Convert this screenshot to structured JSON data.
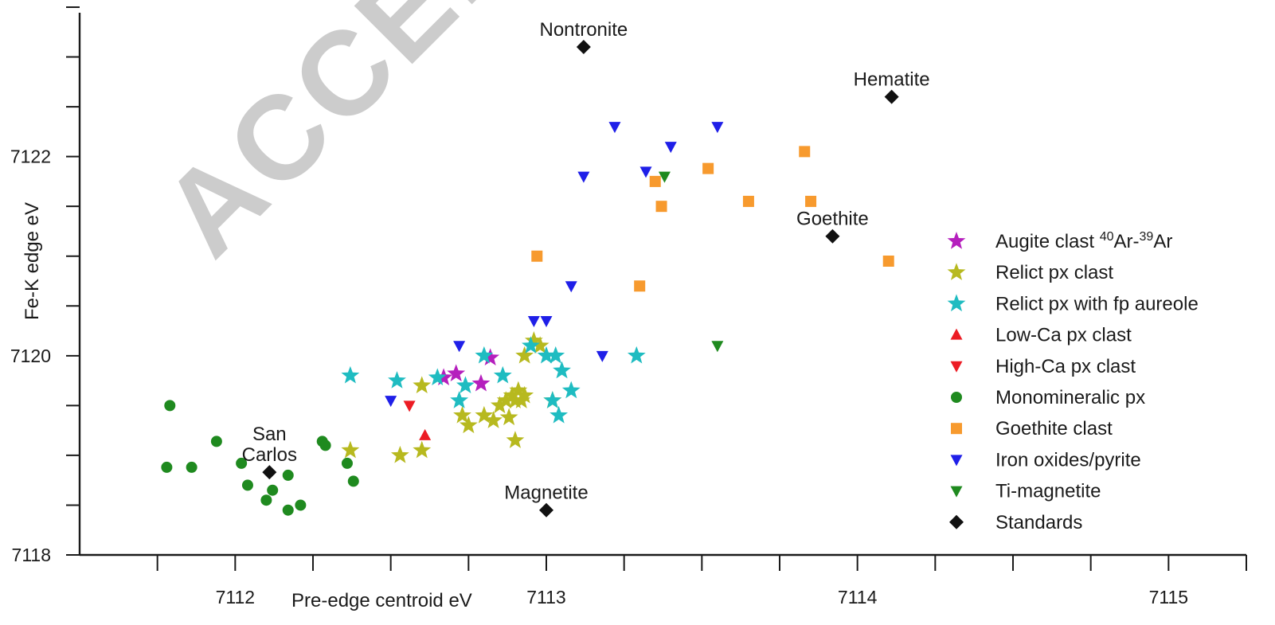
{
  "watermark": "ACCEP",
  "chart_data": {
    "type": "scatter",
    "xlabel": "Pre-edge centroid eV",
    "ylabel": "Fe-K edge eV",
    "xlim": [
      7111.5,
      7115.25
    ],
    "ylim": [
      7118,
      7123.5
    ],
    "x_ticks": [
      7112,
      7113,
      7114,
      7115
    ],
    "y_ticks": [
      7118,
      7120,
      7122
    ],
    "x_minor_step": 0.25,
    "y_minor_step": 0.5,
    "grid": false,
    "legend_position": "right",
    "series": [
      {
        "name": "Augite clast 40Ar-39Ar",
        "legend_parts": [
          {
            "text": "Augite clast ",
            "sup": false
          },
          {
            "text": "40",
            "sup": true
          },
          {
            "text": "Ar-",
            "sup": false
          },
          {
            "text": "39",
            "sup": true
          },
          {
            "text": "Ar",
            "sup": false
          }
        ],
        "marker": "star",
        "color": "#b51fbd",
        "points": [
          [
            7112.67,
            7119.78
          ],
          [
            7112.71,
            7119.82
          ],
          [
            7112.79,
            7119.72
          ],
          [
            7112.82,
            7119.98
          ]
        ]
      },
      {
        "name": "Relict px clast",
        "marker": "star",
        "color": "#b7b91f",
        "points": [
          [
            7112.37,
            7119.05
          ],
          [
            7112.53,
            7119.0
          ],
          [
            7112.6,
            7119.05
          ],
          [
            7112.6,
            7119.7
          ],
          [
            7112.73,
            7119.4
          ],
          [
            7112.75,
            7119.3
          ],
          [
            7112.8,
            7119.4
          ],
          [
            7112.83,
            7119.35
          ],
          [
            7112.85,
            7119.5
          ],
          [
            7112.87,
            7119.55
          ],
          [
            7112.88,
            7119.38
          ],
          [
            7112.89,
            7119.6
          ],
          [
            7112.9,
            7119.55
          ],
          [
            7112.91,
            7119.65
          ],
          [
            7112.92,
            7119.55
          ],
          [
            7112.93,
            7119.6
          ],
          [
            7112.9,
            7119.15
          ],
          [
            7112.93,
            7120.0
          ],
          [
            7112.96,
            7120.15
          ],
          [
            7112.98,
            7120.1
          ],
          [
            7113.02,
            7119.55
          ]
        ]
      },
      {
        "name": "Relict px with fp aureole",
        "marker": "star",
        "color": "#1fbcc1",
        "points": [
          [
            7112.37,
            7119.8
          ],
          [
            7112.52,
            7119.75
          ],
          [
            7112.65,
            7119.78
          ],
          [
            7112.72,
            7119.55
          ],
          [
            7112.74,
            7119.7
          ],
          [
            7112.8,
            7120.0
          ],
          [
            7112.86,
            7119.8
          ],
          [
            7112.95,
            7120.1
          ],
          [
            7113.0,
            7120.0
          ],
          [
            7113.03,
            7120.0
          ],
          [
            7113.05,
            7119.85
          ],
          [
            7113.02,
            7119.55
          ],
          [
            7113.04,
            7119.4
          ],
          [
            7113.08,
            7119.65
          ],
          [
            7113.29,
            7120.0
          ]
        ]
      },
      {
        "name": "Low-Ca px clast",
        "marker": "triangle-up",
        "color": "#ec1c24",
        "points": [
          [
            7112.61,
            7119.2
          ]
        ]
      },
      {
        "name": "High-Ca px clast",
        "marker": "triangle-down",
        "color": "#ec1c24",
        "points": [
          [
            7112.56,
            7119.5
          ]
        ]
      },
      {
        "name": "Monomineralic px",
        "marker": "circle",
        "color": "#1f8a1f",
        "points": [
          [
            7111.79,
            7119.5
          ],
          [
            7111.78,
            7118.88
          ],
          [
            7111.86,
            7118.88
          ],
          [
            7111.94,
            7119.14
          ],
          [
            7112.02,
            7118.92
          ],
          [
            7112.04,
            7118.7
          ],
          [
            7112.1,
            7118.55
          ],
          [
            7112.12,
            7118.65
          ],
          [
            7112.17,
            7118.8
          ],
          [
            7112.17,
            7118.45
          ],
          [
            7112.21,
            7118.5
          ],
          [
            7112.28,
            7119.14
          ],
          [
            7112.29,
            7119.1
          ],
          [
            7112.36,
            7118.92
          ],
          [
            7112.38,
            7118.74
          ]
        ]
      },
      {
        "name": "Goethite clast",
        "marker": "square",
        "color": "#f79a2e",
        "points": [
          [
            7112.97,
            7121.0
          ],
          [
            7113.3,
            7120.7
          ],
          [
            7113.35,
            7121.75
          ],
          [
            7113.37,
            7121.5
          ],
          [
            7113.52,
            7121.88
          ],
          [
            7113.65,
            7121.55
          ],
          [
            7113.83,
            7122.05
          ],
          [
            7113.85,
            7121.55
          ],
          [
            7114.1,
            7120.95
          ]
        ]
      },
      {
        "name": "Iron oxides/pyrite",
        "marker": "triangle-down",
        "color": "#1f1fe8",
        "points": [
          [
            7112.5,
            7119.55
          ],
          [
            7112.72,
            7120.1
          ],
          [
            7112.96,
            7120.35
          ],
          [
            7113.0,
            7120.35
          ],
          [
            7113.08,
            7120.7
          ],
          [
            7113.12,
            7121.8
          ],
          [
            7113.18,
            7120.0
          ],
          [
            7113.22,
            7122.3
          ],
          [
            7113.32,
            7121.85
          ],
          [
            7113.4,
            7122.1
          ],
          [
            7113.55,
            7122.3
          ]
        ]
      },
      {
        "name": "Ti-magnetite",
        "marker": "triangle-down",
        "color": "#1f8a1f",
        "points": [
          [
            7113.38,
            7121.8
          ],
          [
            7113.55,
            7120.1
          ]
        ]
      },
      {
        "name": "Standards",
        "marker": "diamond",
        "color": "#111111",
        "points": [
          {
            "x": 7112.11,
            "y": 7118.83,
            "label": [
              "San",
              "Carlos"
            ],
            "anchor": "above"
          },
          {
            "x": 7113.0,
            "y": 7118.45,
            "label": [
              "Magnetite"
            ],
            "anchor": "above"
          },
          {
            "x": 7113.12,
            "y": 7123.1,
            "label": [
              "Nontronite"
            ],
            "anchor": "above"
          },
          {
            "x": 7113.92,
            "y": 7121.2,
            "label": [
              "Goethite"
            ],
            "anchor": "above"
          },
          {
            "x": 7114.11,
            "y": 7122.6,
            "label": [
              "Hematite"
            ],
            "anchor": "above"
          }
        ]
      }
    ]
  }
}
